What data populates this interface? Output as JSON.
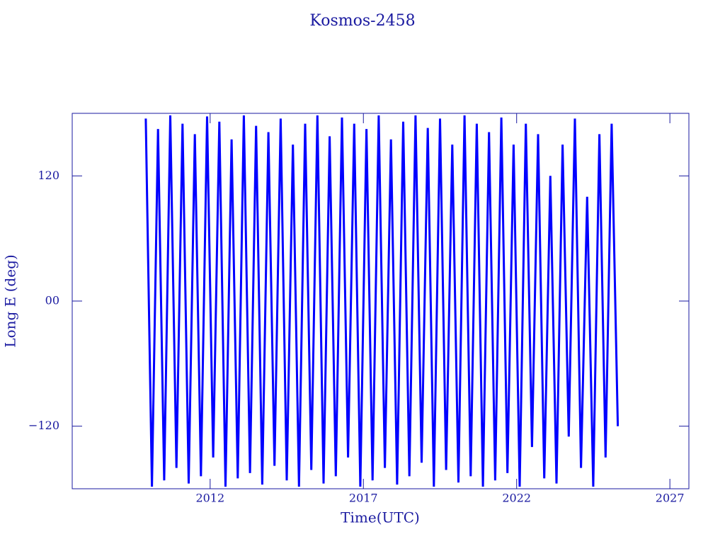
{
  "chart_data": {
    "type": "line",
    "title": "Kosmos-2458",
    "xlabel": "Time(UTC)",
    "ylabel": "Long E (deg)",
    "xlim": [
      2007.5,
      2027.62
    ],
    "ylim": [
      -180,
      180
    ],
    "xticks": [
      2012,
      2017,
      2022,
      2027
    ],
    "yticks": [
      {
        "value": -120,
        "label": "−120"
      },
      {
        "value": 0,
        "label": "00"
      },
      120
    ],
    "series": [
      {
        "name": "Long E",
        "color": "#0000ff",
        "x": [
          2009.9,
          2010.1,
          2010.3,
          2010.5,
          2010.7,
          2010.9,
          2011.1,
          2011.3,
          2011.5,
          2011.7,
          2011.9,
          2012.1,
          2012.3,
          2012.5,
          2012.7,
          2012.9,
          2013.1,
          2013.3,
          2013.5,
          2013.7,
          2013.9,
          2014.1,
          2014.3,
          2014.5,
          2014.7,
          2014.9,
          2015.1,
          2015.3,
          2015.5,
          2015.7,
          2015.9,
          2016.1,
          2016.3,
          2016.5,
          2016.7,
          2016.9,
          2017.1,
          2017.3,
          2017.5,
          2017.7,
          2017.9,
          2018.1,
          2018.3,
          2018.5,
          2018.7,
          2018.9,
          2019.1,
          2019.3,
          2019.5,
          2019.7,
          2019.9,
          2020.1,
          2020.3,
          2020.5,
          2020.7,
          2020.9,
          2021.1,
          2021.3,
          2021.5,
          2021.7,
          2021.9,
          2022.1,
          2022.3,
          2022.5,
          2022.7,
          2022.9,
          2023.1,
          2023.3,
          2023.5,
          2023.7,
          2023.9,
          2024.1,
          2024.3,
          2024.5,
          2024.7,
          2024.9,
          2025.1,
          2025.3
        ],
        "values": [
          175,
          -178,
          165,
          -172,
          178,
          -160,
          170,
          -175,
          160,
          -168,
          177,
          -150,
          172,
          -178,
          155,
          -170,
          178,
          -165,
          168,
          -176,
          162,
          -158,
          175,
          -172,
          150,
          -178,
          170,
          -162,
          178,
          -175,
          158,
          -168,
          176,
          -150,
          170,
          -178,
          165,
          -172,
          178,
          -160,
          155,
          -176,
          172,
          -168,
          178,
          -155,
          166,
          -178,
          175,
          -162,
          150,
          -174,
          178,
          -168,
          170,
          -178,
          162,
          -172,
          176,
          -165,
          150,
          -178,
          170,
          -140,
          160,
          -170,
          120,
          -175,
          150,
          -130,
          175,
          -160,
          100,
          -178,
          160,
          -150,
          170,
          -120
        ]
      }
    ]
  }
}
